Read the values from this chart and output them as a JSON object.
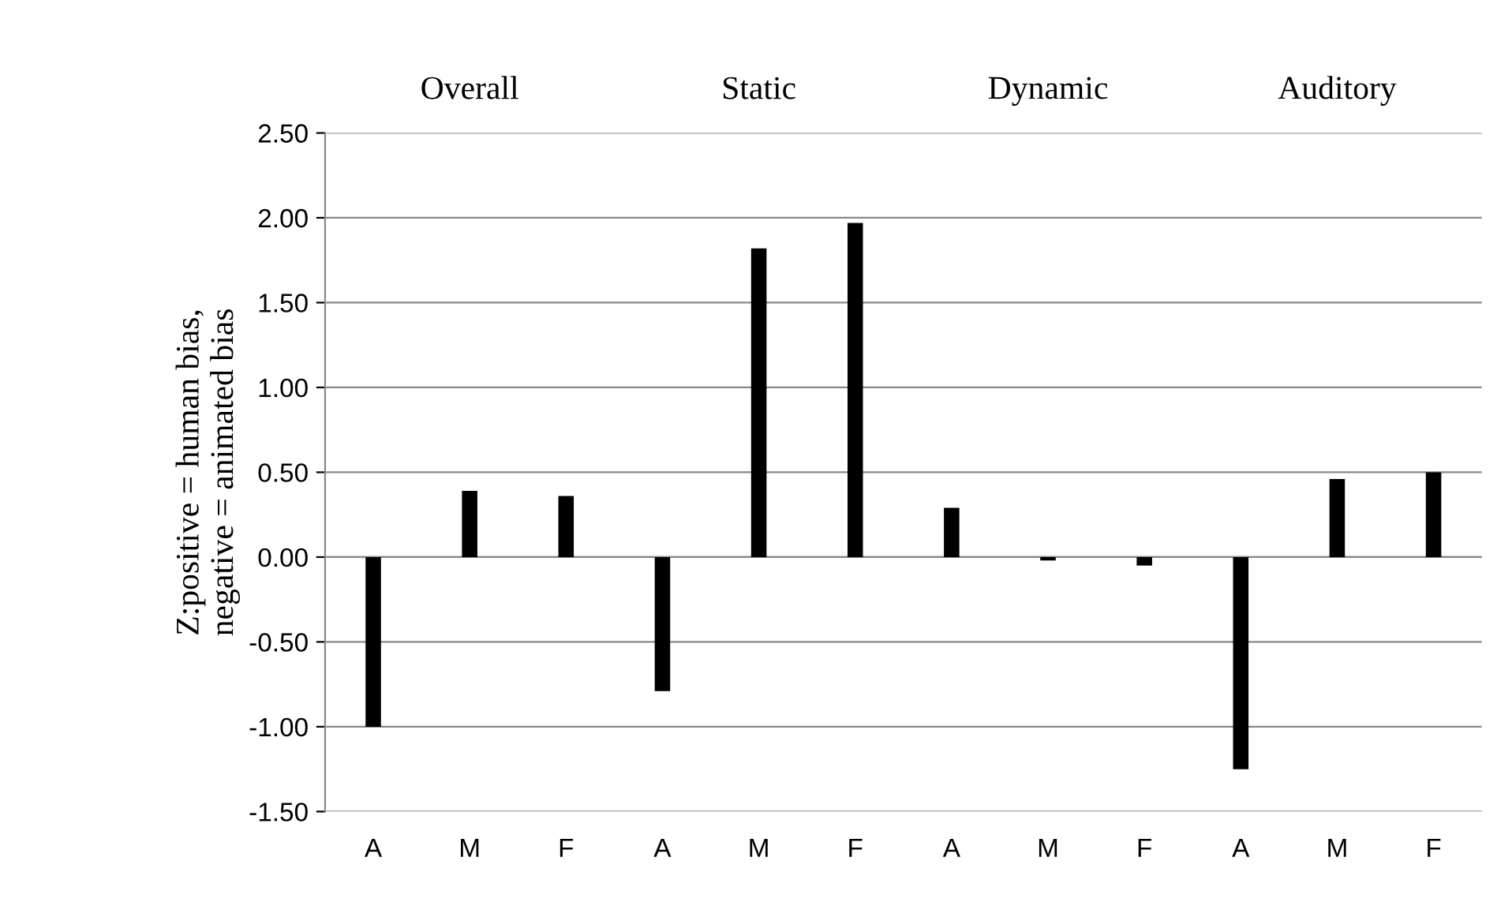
{
  "chart_data": {
    "type": "bar",
    "categories": [
      "A",
      "M",
      "F",
      "A",
      "M",
      "F",
      "A",
      "M",
      "F",
      "A",
      "M",
      "F"
    ],
    "values": [
      -1.0,
      0.39,
      0.36,
      -0.79,
      1.82,
      1.97,
      0.29,
      -0.02,
      -0.05,
      -1.25,
      0.46,
      0.5
    ],
    "color": "#000000",
    "ylabel": "Z:positive = human bias,\nnegative = animated bias",
    "annotations": [
      "Overall",
      "Static",
      "Dynamic",
      "Auditory"
    ],
    "ylim": [
      -1.5,
      2.5
    ],
    "yticks": [
      {
        "value": -1.5,
        "label": "-1.50"
      },
      {
        "value": -1.0,
        "label": "-1.00"
      },
      {
        "value": -0.5,
        "label": "-0.50"
      },
      {
        "value": 0.0,
        "label": "0.00"
      },
      {
        "value": 0.5,
        "label": "0.50"
      },
      {
        "value": 1.0,
        "label": "1.00"
      },
      {
        "value": 1.5,
        "label": "1.50"
      },
      {
        "value": 2.0,
        "label": "2.00"
      },
      {
        "value": 2.5,
        "label": "2.50"
      }
    ],
    "grid": "y",
    "legend": false
  }
}
